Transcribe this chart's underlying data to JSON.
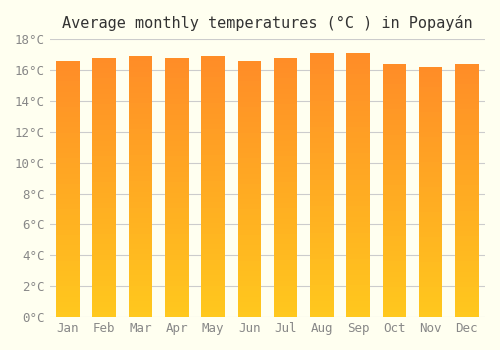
{
  "title": "Average monthly temperatures (°C ) in Popayán",
  "months": [
    "Jan",
    "Feb",
    "Mar",
    "Apr",
    "May",
    "Jun",
    "Jul",
    "Aug",
    "Sep",
    "Oct",
    "Nov",
    "Dec"
  ],
  "values": [
    16.6,
    16.8,
    16.9,
    16.8,
    16.9,
    16.6,
    16.8,
    17.1,
    17.1,
    16.4,
    16.2,
    16.4
  ],
  "ylim": [
    0,
    18
  ],
  "yticks": [
    0,
    2,
    4,
    6,
    8,
    10,
    12,
    14,
    16,
    18
  ],
  "bar_color": "#FFA820",
  "bar_edge_color": "#E89000",
  "background_color": "#FFFFF0",
  "grid_color": "#CCCCCC",
  "title_fontsize": 11,
  "tick_fontsize": 9,
  "bar_width": 0.65
}
